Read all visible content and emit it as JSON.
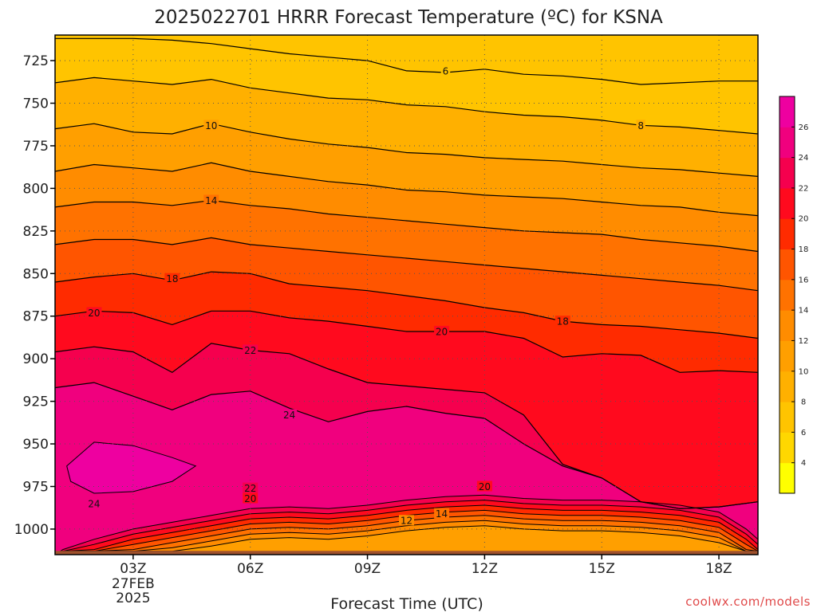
{
  "chart_data": {
    "type": "heatmap",
    "subtype": "filled-contour time-pressure cross-section",
    "title": "2025022701 HRRR Forecast Temperature (ºC) for KSNA",
    "xlabel": "Forecast Time (UTC)",
    "ylabel": "",
    "x_ticks": [
      {
        "time": 3,
        "label": "03Z",
        "sub1": "27FEB",
        "sub2": "2025"
      },
      {
        "time": 6,
        "label": "06Z"
      },
      {
        "time": 9,
        "label": "09Z"
      },
      {
        "time": 12,
        "label": "12Z"
      },
      {
        "time": 15,
        "label": "15Z"
      },
      {
        "time": 18,
        "label": "18Z"
      }
    ],
    "x_range": [
      1,
      19
    ],
    "y_ticks": [
      725,
      750,
      775,
      800,
      825,
      850,
      875,
      900,
      925,
      950,
      975,
      1000
    ],
    "y_range": [
      710,
      1015
    ],
    "y_axis": "pressure (hPa), increasing downward",
    "grid": "dotted",
    "surface_fill": "#a0522d",
    "colorbar": {
      "levels": [
        2,
        4,
        6,
        8,
        10,
        12,
        14,
        16,
        18,
        20,
        22,
        24,
        26,
        28
      ],
      "labels": [
        "4",
        "6",
        "8",
        "10",
        "12",
        "14",
        "16",
        "18",
        "20",
        "22",
        "24",
        "26"
      ],
      "colors": [
        "#ffff00",
        "#ffd700",
        "#ffc400",
        "#ffb000",
        "#ff9f00",
        "#ff8c00",
        "#ff7200",
        "#ff5500",
        "#ff2b00",
        "#ff0a1e",
        "#f5004e",
        "#f0007e",
        "#ee00a0"
      ]
    },
    "contour_interval": 2,
    "contours": [
      {
        "value": 6,
        "points": [
          [
            1,
            712
          ],
          [
            2,
            712
          ],
          [
            3,
            712
          ],
          [
            4,
            713
          ],
          [
            5,
            715
          ],
          [
            6,
            718
          ],
          [
            7,
            721
          ],
          [
            8,
            723
          ],
          [
            9,
            725
          ],
          [
            10,
            731
          ],
          [
            11,
            732
          ],
          [
            12,
            730
          ],
          [
            13,
            733
          ],
          [
            14,
            734
          ],
          [
            15,
            736
          ],
          [
            16,
            739
          ],
          [
            17,
            738
          ],
          [
            18,
            737
          ],
          [
            19,
            737
          ]
        ]
      },
      {
        "value": 8,
        "points": [
          [
            1,
            738
          ],
          [
            2,
            735
          ],
          [
            3,
            737
          ],
          [
            4,
            739
          ],
          [
            5,
            736
          ],
          [
            6,
            741
          ],
          [
            7,
            744
          ],
          [
            8,
            747
          ],
          [
            9,
            748
          ],
          [
            10,
            751
          ],
          [
            11,
            752
          ],
          [
            12,
            755
          ],
          [
            13,
            757
          ],
          [
            14,
            758
          ],
          [
            15,
            760
          ],
          [
            16,
            763
          ],
          [
            17,
            764
          ],
          [
            18,
            766
          ],
          [
            19,
            768
          ]
        ]
      },
      {
        "value": 10,
        "points": [
          [
            1,
            765
          ],
          [
            2,
            762
          ],
          [
            3,
            767
          ],
          [
            4,
            768
          ],
          [
            5,
            762
          ],
          [
            6,
            767
          ],
          [
            7,
            771
          ],
          [
            8,
            774
          ],
          [
            9,
            776
          ],
          [
            10,
            779
          ],
          [
            11,
            780
          ],
          [
            12,
            782
          ],
          [
            13,
            783
          ],
          [
            14,
            784
          ],
          [
            15,
            786
          ],
          [
            16,
            788
          ],
          [
            17,
            789
          ],
          [
            18,
            791
          ],
          [
            19,
            793
          ]
        ]
      },
      {
        "value": 12,
        "points": [
          [
            1,
            790
          ],
          [
            2,
            786
          ],
          [
            3,
            788
          ],
          [
            4,
            790
          ],
          [
            5,
            785
          ],
          [
            6,
            790
          ],
          [
            7,
            793
          ],
          [
            8,
            796
          ],
          [
            9,
            798
          ],
          [
            10,
            801
          ],
          [
            11,
            802
          ],
          [
            12,
            804
          ],
          [
            13,
            805
          ],
          [
            14,
            806
          ],
          [
            15,
            808
          ],
          [
            16,
            810
          ],
          [
            17,
            811
          ],
          [
            18,
            814
          ],
          [
            19,
            816
          ]
        ]
      },
      {
        "value": 14,
        "points": [
          [
            1,
            811
          ],
          [
            2,
            808
          ],
          [
            3,
            808
          ],
          [
            4,
            810
          ],
          [
            5,
            807
          ],
          [
            6,
            810
          ],
          [
            7,
            812
          ],
          [
            8,
            815
          ],
          [
            9,
            817
          ],
          [
            10,
            819
          ],
          [
            11,
            821
          ],
          [
            12,
            823
          ],
          [
            13,
            825
          ],
          [
            14,
            826
          ],
          [
            15,
            827
          ],
          [
            16,
            830
          ],
          [
            17,
            832
          ],
          [
            18,
            834
          ],
          [
            19,
            837
          ]
        ]
      },
      {
        "value": 16,
        "points": [
          [
            1,
            833
          ],
          [
            2,
            830
          ],
          [
            3,
            830
          ],
          [
            4,
            833
          ],
          [
            5,
            829
          ],
          [
            6,
            833
          ],
          [
            7,
            835
          ],
          [
            8,
            837
          ],
          [
            9,
            839
          ],
          [
            10,
            841
          ],
          [
            11,
            843
          ],
          [
            12,
            845
          ],
          [
            13,
            847
          ],
          [
            14,
            849
          ],
          [
            15,
            851
          ],
          [
            16,
            853
          ],
          [
            17,
            855
          ],
          [
            18,
            857
          ],
          [
            19,
            860
          ]
        ]
      },
      {
        "value": 18,
        "points": [
          [
            1,
            855
          ],
          [
            2,
            852
          ],
          [
            3,
            850
          ],
          [
            4,
            854
          ],
          [
            5,
            849
          ],
          [
            6,
            850
          ],
          [
            7,
            856
          ],
          [
            8,
            858
          ],
          [
            9,
            860
          ],
          [
            10,
            863
          ],
          [
            11,
            866
          ],
          [
            12,
            870
          ],
          [
            13,
            873
          ],
          [
            14,
            878
          ],
          [
            15,
            880
          ],
          [
            16,
            881
          ],
          [
            17,
            883
          ],
          [
            18,
            885
          ],
          [
            19,
            888
          ]
        ]
      },
      {
        "value": 20,
        "points": [
          [
            1,
            875
          ],
          [
            2,
            872
          ],
          [
            3,
            873
          ],
          [
            4,
            880
          ],
          [
            5,
            872
          ],
          [
            6,
            872
          ],
          [
            7,
            876
          ],
          [
            8,
            878
          ],
          [
            9,
            881
          ],
          [
            10,
            884
          ],
          [
            11,
            884
          ],
          [
            12,
            884
          ],
          [
            13,
            888
          ],
          [
            14,
            899
          ],
          [
            15,
            897
          ],
          [
            16,
            898
          ],
          [
            17,
            908
          ],
          [
            18,
            907
          ],
          [
            19,
            908
          ]
        ]
      },
      {
        "value": 22,
        "points": [
          [
            1,
            896
          ],
          [
            2,
            893
          ],
          [
            3,
            896
          ],
          [
            4,
            908
          ],
          [
            5,
            891
          ],
          [
            6,
            895
          ],
          [
            7,
            897
          ],
          [
            8,
            906
          ],
          [
            9,
            914
          ],
          [
            10,
            916
          ],
          [
            11,
            918
          ],
          [
            12,
            920
          ],
          [
            13,
            933
          ],
          [
            14,
            962
          ],
          [
            15,
            970
          ],
          [
            16,
            984
          ],
          [
            17,
            988
          ],
          [
            18,
            987
          ],
          [
            19,
            984
          ]
        ]
      },
      {
        "value": 24,
        "points": [
          [
            1,
            917
          ],
          [
            2,
            914
          ],
          [
            3,
            922
          ],
          [
            4,
            930
          ],
          [
            5,
            921
          ],
          [
            6,
            919
          ],
          [
            7,
            929
          ],
          [
            8,
            937
          ],
          [
            9,
            931
          ],
          [
            10,
            928
          ],
          [
            11,
            932
          ],
          [
            12,
            935
          ],
          [
            13,
            950
          ],
          [
            14,
            963
          ],
          [
            15,
            970
          ],
          [
            16,
            984
          ],
          [
            17,
            988
          ],
          [
            18,
            987
          ],
          [
            19,
            984
          ]
        ]
      }
    ],
    "contour_labels": [
      {
        "text": "6",
        "time": 11.0,
        "p": 731
      },
      {
        "text": "8",
        "time": 16.0,
        "p": 763
      },
      {
        "text": "10",
        "time": 5.0,
        "p": 763
      },
      {
        "text": "14",
        "time": 5.0,
        "p": 807
      },
      {
        "text": "18",
        "time": 4.0,
        "p": 853
      },
      {
        "text": "20",
        "time": 2.0,
        "p": 873
      },
      {
        "text": "18",
        "time": 14.0,
        "p": 878
      },
      {
        "text": "20",
        "time": 10.9,
        "p": 884
      },
      {
        "text": "22",
        "time": 6.0,
        "p": 895
      },
      {
        "text": "24",
        "time": 7.0,
        "p": 933
      },
      {
        "text": "24",
        "time": 2.0,
        "p": 985
      },
      {
        "text": "22",
        "time": 6.0,
        "p": 976
      },
      {
        "text": "20",
        "time": 6.0,
        "p": 982
      },
      {
        "text": "20",
        "time": 12.0,
        "p": 975
      },
      {
        "text": "14",
        "time": 10.9,
        "p": 991
      },
      {
        "text": "12",
        "time": 10.0,
        "p": 995
      }
    ]
  },
  "credit": "coolwx.com/models"
}
